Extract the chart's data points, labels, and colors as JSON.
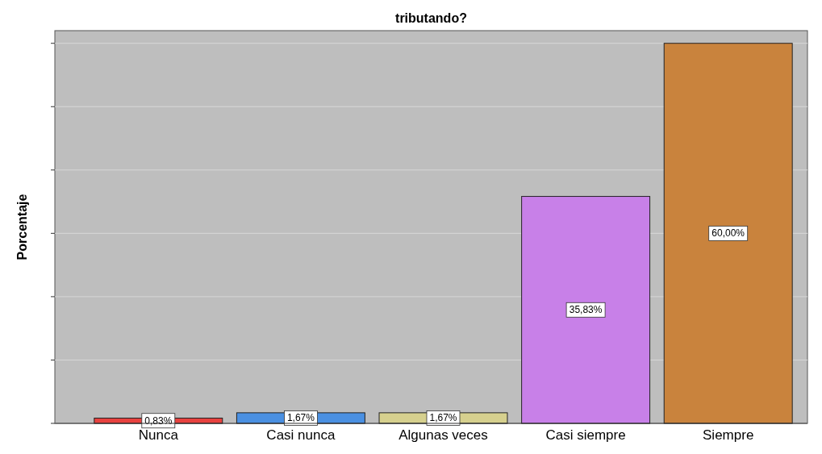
{
  "chart_data": {
    "type": "bar",
    "title": "tributando?",
    "ylabel": "Porcentaje",
    "categories": [
      "Nunca",
      "Casi nunca",
      "Algunas veces",
      "Casi siempre",
      "Siempre"
    ],
    "values": [
      0.83,
      1.67,
      1.67,
      35.83,
      60.0
    ],
    "colors": [
      "#e8423f",
      "#4a90e2",
      "#d6d08e",
      "#c880e8",
      "#c9833d"
    ],
    "value_labels": [
      "0,83%",
      "1,67%",
      "1,67%",
      "35,83%",
      "60,00%"
    ],
    "ylim": [
      0,
      62
    ],
    "yticks": [
      {
        "value": 0,
        "label": null
      },
      {
        "value": 10,
        "label": null
      },
      {
        "value": 20,
        "label": null
      },
      {
        "value": 30,
        "label": null
      },
      {
        "value": 40,
        "label": null
      },
      {
        "value": 50,
        "label": null
      },
      {
        "value": 60,
        "label": null
      }
    ],
    "grid": true,
    "tick_labels": "x"
  }
}
